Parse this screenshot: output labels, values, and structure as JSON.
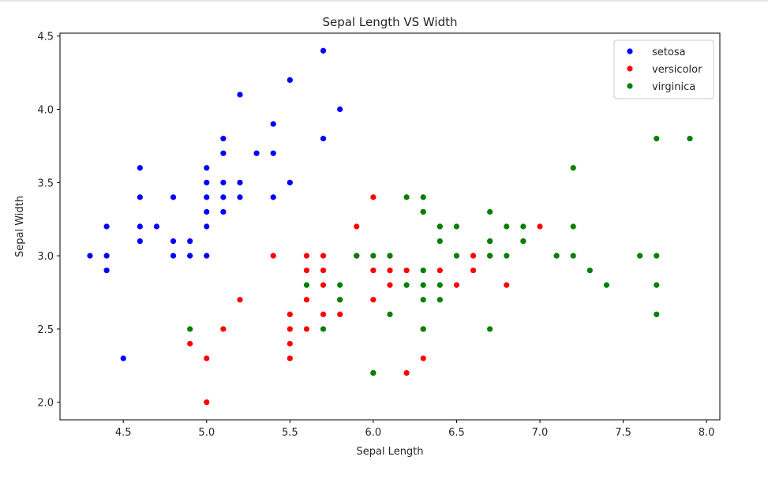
{
  "chart_data": {
    "type": "scatter",
    "title": "Sepal Length VS Width",
    "xlabel": "Sepal Length",
    "ylabel": "Sepal Width",
    "xlim": [
      4.12,
      8.08
    ],
    "ylim": [
      1.88,
      4.52
    ],
    "xticks": [
      "4.5",
      "5.0",
      "5.5",
      "6.0",
      "6.5",
      "7.0",
      "7.5",
      "8.0"
    ],
    "yticks": [
      "2.0",
      "2.5",
      "3.0",
      "3.5",
      "4.0",
      "4.5"
    ],
    "grid": false,
    "legend_position": "top-right",
    "series": [
      {
        "name": "setosa",
        "color": "#0000ff",
        "points": [
          [
            4.3,
            3.0
          ],
          [
            4.4,
            2.9
          ],
          [
            4.4,
            3.0
          ],
          [
            4.4,
            3.2
          ],
          [
            4.5,
            2.3
          ],
          [
            4.6,
            3.1
          ],
          [
            4.6,
            3.2
          ],
          [
            4.6,
            3.4
          ],
          [
            4.6,
            3.6
          ],
          [
            4.7,
            3.2
          ],
          [
            4.8,
            3.0
          ],
          [
            4.8,
            3.1
          ],
          [
            4.8,
            3.4
          ],
          [
            4.9,
            3.0
          ],
          [
            4.9,
            3.1
          ],
          [
            5.0,
            3.0
          ],
          [
            5.0,
            3.2
          ],
          [
            5.0,
            3.3
          ],
          [
            5.0,
            3.4
          ],
          [
            5.0,
            3.5
          ],
          [
            5.0,
            3.6
          ],
          [
            5.1,
            3.3
          ],
          [
            5.1,
            3.4
          ],
          [
            5.1,
            3.5
          ],
          [
            5.1,
            3.7
          ],
          [
            5.1,
            3.8
          ],
          [
            5.2,
            3.4
          ],
          [
            5.2,
            3.5
          ],
          [
            5.2,
            4.1
          ],
          [
            5.3,
            3.7
          ],
          [
            5.4,
            3.4
          ],
          [
            5.4,
            3.7
          ],
          [
            5.4,
            3.9
          ],
          [
            5.5,
            3.5
          ],
          [
            5.5,
            4.2
          ],
          [
            5.7,
            3.8
          ],
          [
            5.7,
            4.4
          ],
          [
            5.8,
            4.0
          ]
        ]
      },
      {
        "name": "versicolor",
        "color": "#ff0000",
        "points": [
          [
            4.9,
            2.4
          ],
          [
            5.0,
            2.0
          ],
          [
            5.0,
            2.3
          ],
          [
            5.1,
            2.5
          ],
          [
            5.2,
            2.7
          ],
          [
            5.4,
            3.0
          ],
          [
            5.5,
            2.3
          ],
          [
            5.5,
            2.4
          ],
          [
            5.5,
            2.5
          ],
          [
            5.5,
            2.6
          ],
          [
            5.6,
            2.5
          ],
          [
            5.6,
            2.7
          ],
          [
            5.6,
            2.9
          ],
          [
            5.6,
            3.0
          ],
          [
            5.7,
            2.6
          ],
          [
            5.7,
            2.8
          ],
          [
            5.7,
            2.9
          ],
          [
            5.7,
            3.0
          ],
          [
            5.8,
            2.6
          ],
          [
            5.8,
            2.7
          ],
          [
            5.9,
            3.0
          ],
          [
            5.9,
            3.2
          ],
          [
            6.0,
            2.2
          ],
          [
            6.0,
            2.7
          ],
          [
            6.0,
            2.9
          ],
          [
            6.0,
            3.4
          ],
          [
            6.1,
            2.8
          ],
          [
            6.1,
            2.9
          ],
          [
            6.1,
            3.0
          ],
          [
            6.2,
            2.2
          ],
          [
            6.2,
            2.9
          ],
          [
            6.3,
            2.3
          ],
          [
            6.3,
            2.5
          ],
          [
            6.3,
            3.3
          ],
          [
            6.4,
            2.9
          ],
          [
            6.4,
            3.2
          ],
          [
            6.5,
            2.8
          ],
          [
            6.6,
            2.9
          ],
          [
            6.6,
            3.0
          ],
          [
            6.7,
            3.0
          ],
          [
            6.7,
            3.1
          ],
          [
            6.8,
            2.8
          ],
          [
            6.9,
            3.1
          ],
          [
            7.0,
            3.2
          ]
        ]
      },
      {
        "name": "virginica",
        "color": "#008000",
        "points": [
          [
            4.9,
            2.5
          ],
          [
            5.6,
            2.8
          ],
          [
            5.7,
            2.5
          ],
          [
            5.8,
            2.7
          ],
          [
            5.8,
            2.8
          ],
          [
            5.9,
            3.0
          ],
          [
            6.0,
            2.2
          ],
          [
            6.0,
            3.0
          ],
          [
            6.1,
            2.6
          ],
          [
            6.1,
            3.0
          ],
          [
            6.2,
            2.8
          ],
          [
            6.2,
            3.4
          ],
          [
            6.3,
            2.5
          ],
          [
            6.3,
            2.7
          ],
          [
            6.3,
            2.8
          ],
          [
            6.3,
            2.9
          ],
          [
            6.3,
            3.3
          ],
          [
            6.3,
            3.4
          ],
          [
            6.4,
            2.7
          ],
          [
            6.4,
            2.8
          ],
          [
            6.4,
            3.1
          ],
          [
            6.4,
            3.2
          ],
          [
            6.5,
            3.0
          ],
          [
            6.5,
            3.2
          ],
          [
            6.7,
            2.5
          ],
          [
            6.7,
            3.0
          ],
          [
            6.7,
            3.1
          ],
          [
            6.7,
            3.3
          ],
          [
            6.8,
            3.0
          ],
          [
            6.8,
            3.2
          ],
          [
            6.9,
            3.1
          ],
          [
            6.9,
            3.2
          ],
          [
            7.1,
            3.0
          ],
          [
            7.2,
            3.0
          ],
          [
            7.2,
            3.2
          ],
          [
            7.2,
            3.6
          ],
          [
            7.3,
            2.9
          ],
          [
            7.4,
            2.8
          ],
          [
            7.6,
            3.0
          ],
          [
            7.7,
            2.6
          ],
          [
            7.7,
            2.8
          ],
          [
            7.7,
            3.0
          ],
          [
            7.7,
            3.8
          ],
          [
            7.9,
            3.8
          ]
        ]
      }
    ]
  }
}
